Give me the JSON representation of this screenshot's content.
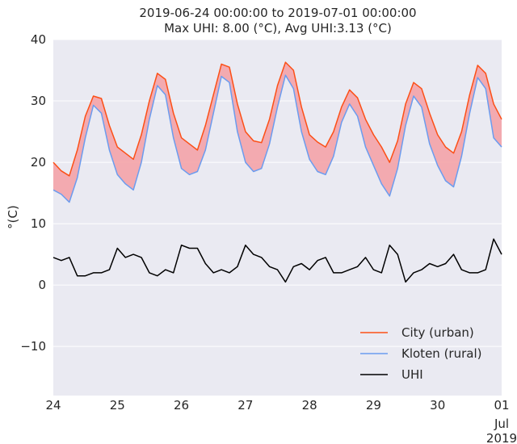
{
  "chart_data": {
    "type": "line",
    "title_line1": "2019-06-24 00:00:00 to 2019-07-01 00:00:00",
    "title_line2": "Max UHI: 8.00 (°C), Avg UHI:3.13 (°C)",
    "ylabel": "°(C)",
    "xlabel": "",
    "ylim": [
      -18,
      40
    ],
    "xlim": [
      "2019-06-24 00:00",
      "2019-07-01 00:00"
    ],
    "yticks": [
      -10,
      0,
      10,
      20,
      30,
      40
    ],
    "ytick_labels": [
      "−10",
      "0",
      "10",
      "20",
      "30",
      "40"
    ],
    "xtick_labels": [
      "24",
      "25",
      "26",
      "27",
      "28",
      "29",
      "30",
      "01"
    ],
    "xtick_extra": [
      "Jul",
      "2019"
    ],
    "grid": true,
    "background": "#eaeaf2",
    "legend_position": "lower-right",
    "fill_between": {
      "upper": "City (urban)",
      "lower": "Kloten (rural)",
      "color": "#f4a3a8"
    },
    "series": [
      {
        "name": "City (urban)",
        "color": "#fc4f16",
        "x": [
          "2019-06-24 00:00",
          "2019-06-24 03:00",
          "2019-06-24 06:00",
          "2019-06-24 09:00",
          "2019-06-24 12:00",
          "2019-06-24 15:00",
          "2019-06-24 18:00",
          "2019-06-24 21:00",
          "2019-06-25 00:00",
          "2019-06-25 03:00",
          "2019-06-25 06:00",
          "2019-06-25 09:00",
          "2019-06-25 12:00",
          "2019-06-25 15:00",
          "2019-06-25 18:00",
          "2019-06-25 21:00",
          "2019-06-26 00:00",
          "2019-06-26 03:00",
          "2019-06-26 06:00",
          "2019-06-26 09:00",
          "2019-06-26 12:00",
          "2019-06-26 15:00",
          "2019-06-26 18:00",
          "2019-06-26 21:00",
          "2019-06-27 00:00",
          "2019-06-27 03:00",
          "2019-06-27 06:00",
          "2019-06-27 09:00",
          "2019-06-27 12:00",
          "2019-06-27 15:00",
          "2019-06-27 18:00",
          "2019-06-27 21:00",
          "2019-06-28 00:00",
          "2019-06-28 03:00",
          "2019-06-28 06:00",
          "2019-06-28 09:00",
          "2019-06-28 12:00",
          "2019-06-28 15:00",
          "2019-06-28 18:00",
          "2019-06-28 21:00",
          "2019-06-29 00:00",
          "2019-06-29 03:00",
          "2019-06-29 06:00",
          "2019-06-29 09:00",
          "2019-06-29 12:00",
          "2019-06-29 15:00",
          "2019-06-29 18:00",
          "2019-06-29 21:00",
          "2019-06-30 00:00",
          "2019-06-30 03:00",
          "2019-06-30 06:00",
          "2019-06-30 09:00",
          "2019-06-30 12:00",
          "2019-06-30 15:00",
          "2019-06-30 18:00",
          "2019-06-30 21:00",
          "2019-07-01 00:00"
        ],
        "values": [
          20.0,
          18.6,
          17.8,
          22.0,
          27.5,
          30.8,
          30.4,
          26.0,
          22.5,
          21.5,
          20.5,
          24.5,
          30.0,
          34.5,
          33.5,
          28.0,
          24.0,
          23.0,
          22.0,
          26.0,
          31.0,
          36.0,
          35.5,
          29.5,
          25.0,
          23.5,
          23.2,
          27.0,
          32.5,
          36.3,
          35.0,
          29.0,
          24.5,
          23.3,
          22.5,
          25.0,
          29.0,
          31.8,
          30.5,
          27.0,
          24.5,
          22.5,
          20.0,
          23.5,
          29.5,
          33.0,
          32.0,
          28.0,
          24.5,
          22.5,
          21.5,
          25.0,
          31.0,
          35.8,
          34.5,
          29.5,
          27.0
        ]
      },
      {
        "name": "Kloten (rural)",
        "color": "#6b9cef",
        "x": [
          "2019-06-24 00:00",
          "2019-06-24 03:00",
          "2019-06-24 06:00",
          "2019-06-24 09:00",
          "2019-06-24 12:00",
          "2019-06-24 15:00",
          "2019-06-24 18:00",
          "2019-06-24 21:00",
          "2019-06-25 00:00",
          "2019-06-25 03:00",
          "2019-06-25 06:00",
          "2019-06-25 09:00",
          "2019-06-25 12:00",
          "2019-06-25 15:00",
          "2019-06-25 18:00",
          "2019-06-25 21:00",
          "2019-06-26 00:00",
          "2019-06-26 03:00",
          "2019-06-26 06:00",
          "2019-06-26 09:00",
          "2019-06-26 12:00",
          "2019-06-26 15:00",
          "2019-06-26 18:00",
          "2019-06-26 21:00",
          "2019-06-27 00:00",
          "2019-06-27 03:00",
          "2019-06-27 06:00",
          "2019-06-27 09:00",
          "2019-06-27 12:00",
          "2019-06-27 15:00",
          "2019-06-27 18:00",
          "2019-06-27 21:00",
          "2019-06-28 00:00",
          "2019-06-28 03:00",
          "2019-06-28 06:00",
          "2019-06-28 09:00",
          "2019-06-28 12:00",
          "2019-06-28 15:00",
          "2019-06-28 18:00",
          "2019-06-28 21:00",
          "2019-06-29 00:00",
          "2019-06-29 03:00",
          "2019-06-29 06:00",
          "2019-06-29 09:00",
          "2019-06-29 12:00",
          "2019-06-29 15:00",
          "2019-06-29 18:00",
          "2019-06-29 21:00",
          "2019-06-30 00:00",
          "2019-06-30 03:00",
          "2019-06-30 06:00",
          "2019-06-30 09:00",
          "2019-06-30 12:00",
          "2019-06-30 15:00",
          "2019-06-30 18:00",
          "2019-06-30 21:00",
          "2019-07-01 00:00"
        ],
        "values": [
          15.5,
          14.8,
          13.5,
          17.5,
          24.0,
          29.3,
          28.0,
          22.0,
          18.0,
          16.5,
          15.5,
          20.0,
          27.0,
          32.5,
          31.0,
          24.0,
          19.0,
          18.0,
          18.5,
          22.0,
          28.0,
          34.0,
          33.0,
          25.0,
          20.0,
          18.5,
          19.0,
          23.0,
          29.0,
          34.2,
          32.0,
          25.0,
          20.5,
          18.5,
          18.0,
          21.0,
          26.5,
          29.5,
          27.5,
          22.5,
          19.5,
          16.5,
          14.5,
          19.0,
          26.0,
          30.8,
          29.0,
          23.0,
          19.5,
          17.0,
          16.0,
          21.0,
          28.0,
          33.8,
          32.0,
          24.0,
          22.5
        ]
      },
      {
        "name": "UHI",
        "color": "#000000",
        "x": [
          "2019-06-24 00:00",
          "2019-06-24 03:00",
          "2019-06-24 06:00",
          "2019-06-24 09:00",
          "2019-06-24 12:00",
          "2019-06-24 15:00",
          "2019-06-24 18:00",
          "2019-06-24 21:00",
          "2019-06-25 00:00",
          "2019-06-25 03:00",
          "2019-06-25 06:00",
          "2019-06-25 09:00",
          "2019-06-25 12:00",
          "2019-06-25 15:00",
          "2019-06-25 18:00",
          "2019-06-25 21:00",
          "2019-06-26 00:00",
          "2019-06-26 03:00",
          "2019-06-26 06:00",
          "2019-06-26 09:00",
          "2019-06-26 12:00",
          "2019-06-26 15:00",
          "2019-06-26 18:00",
          "2019-06-26 21:00",
          "2019-06-27 00:00",
          "2019-06-27 03:00",
          "2019-06-27 06:00",
          "2019-06-27 09:00",
          "2019-06-27 12:00",
          "2019-06-27 15:00",
          "2019-06-27 18:00",
          "2019-06-27 21:00",
          "2019-06-28 00:00",
          "2019-06-28 03:00",
          "2019-06-28 06:00",
          "2019-06-28 09:00",
          "2019-06-28 12:00",
          "2019-06-28 15:00",
          "2019-06-28 18:00",
          "2019-06-28 21:00",
          "2019-06-29 00:00",
          "2019-06-29 03:00",
          "2019-06-29 06:00",
          "2019-06-29 09:00",
          "2019-06-29 12:00",
          "2019-06-29 15:00",
          "2019-06-29 18:00",
          "2019-06-29 21:00",
          "2019-06-30 00:00",
          "2019-06-30 03:00",
          "2019-06-30 06:00",
          "2019-06-30 09:00",
          "2019-06-30 12:00",
          "2019-06-30 15:00",
          "2019-06-30 18:00",
          "2019-06-30 21:00",
          "2019-07-01 00:00"
        ],
        "values": [
          4.5,
          4.0,
          4.5,
          1.5,
          1.5,
          2.0,
          2.0,
          2.5,
          6.0,
          4.5,
          5.0,
          4.5,
          2.0,
          1.5,
          2.5,
          2.0,
          6.5,
          6.0,
          6.0,
          3.5,
          2.0,
          2.5,
          2.0,
          3.0,
          6.5,
          5.0,
          4.5,
          3.0,
          2.5,
          0.5,
          3.0,
          3.5,
          2.5,
          4.0,
          4.5,
          2.0,
          2.0,
          2.5,
          3.0,
          4.5,
          2.5,
          2.0,
          6.5,
          5.0,
          0.5,
          2.0,
          2.5,
          3.5,
          3.0,
          3.5,
          5.0,
          2.5,
          2.0,
          2.0,
          2.5,
          7.5,
          5.0
        ]
      }
    ]
  }
}
